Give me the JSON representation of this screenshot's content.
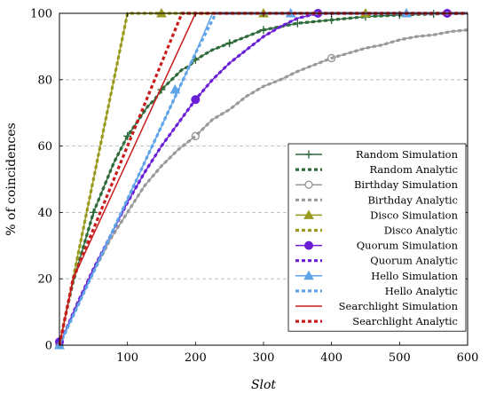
{
  "chart_data": {
    "type": "line",
    "xlabel": "Slot",
    "ylabel": "% of coincidences",
    "xlim": [
      0,
      600
    ],
    "ylim": [
      0,
      100
    ],
    "xticks": [
      100,
      200,
      300,
      400,
      500,
      600
    ],
    "yticks": [
      0,
      20,
      40,
      60,
      80,
      100
    ],
    "grid": "horizontal dashed",
    "legend_position": "bottom-right",
    "series": [
      {
        "name": "Random Simulation",
        "color": "#2f6b3a",
        "style": "solid",
        "marker": "plus",
        "x": [
          0,
          10,
          20,
          30,
          40,
          50,
          60,
          70,
          80,
          90,
          100,
          110,
          120,
          130,
          140,
          150,
          160,
          170,
          180,
          190,
          200,
          225,
          250,
          275,
          300,
          325,
          350,
          375,
          400,
          450,
          500,
          550,
          600
        ],
        "y": [
          0,
          10,
          19,
          26,
          33,
          40,
          45,
          50,
          55,
          59,
          63,
          66,
          69,
          72,
          74,
          77,
          79,
          81,
          83,
          84,
          86,
          89,
          91,
          93,
          95,
          96,
          97,
          97.5,
          98,
          99,
          99.5,
          99.8,
          100
        ],
        "markers_x": [
          0,
          50,
          100,
          150,
          200,
          250,
          300,
          350,
          400,
          450,
          500,
          550
        ],
        "markers_y": [
          0,
          40,
          63,
          77,
          86,
          91,
          95,
          97,
          98,
          99,
          99.5,
          99.8
        ]
      },
      {
        "name": "Random Analytic",
        "color": "#2f6b3a",
        "style": "dashed",
        "x": [
          0,
          10,
          20,
          30,
          40,
          50,
          60,
          70,
          80,
          90,
          100,
          110,
          120,
          130,
          140,
          150,
          160,
          170,
          180,
          190,
          200,
          225,
          250,
          275,
          300,
          325,
          350,
          375,
          400,
          450,
          500,
          550,
          600
        ],
        "y": [
          0,
          10,
          19,
          26,
          33,
          40,
          45,
          50,
          55,
          59,
          63,
          66,
          69,
          72,
          74,
          77,
          79,
          81,
          83,
          84,
          86,
          89,
          91,
          93,
          95,
          96,
          97,
          97.5,
          98,
          99,
          99.5,
          99.8,
          100
        ]
      },
      {
        "name": "Birthday Simulation",
        "color": "#999999",
        "style": "solid",
        "marker": "circle-open",
        "x": [
          0,
          25,
          50,
          75,
          100,
          125,
          150,
          175,
          200,
          225,
          250,
          275,
          300,
          325,
          350,
          375,
          400,
          425,
          450,
          475,
          500,
          525,
          550,
          575,
          600
        ],
        "y": [
          0,
          12,
          22,
          32,
          40,
          48,
          54,
          59,
          63,
          68,
          71,
          75,
          78,
          80,
          82.5,
          84.5,
          86.5,
          88,
          89.5,
          90.5,
          92,
          93,
          93.5,
          94.5,
          95
        ],
        "markers_x": [
          0,
          200,
          400
        ],
        "markers_y": [
          0,
          63,
          86.5
        ]
      },
      {
        "name": "Birthday Analytic",
        "color": "#999999",
        "style": "dashed",
        "x": [
          0,
          25,
          50,
          75,
          100,
          125,
          150,
          175,
          200,
          225,
          250,
          275,
          300,
          325,
          350,
          375,
          400,
          425,
          450,
          475,
          500,
          525,
          550,
          575,
          600
        ],
        "y": [
          0,
          12,
          22,
          32,
          40,
          48,
          54,
          59,
          63,
          68,
          71,
          75,
          78,
          80,
          82.5,
          84.5,
          86.5,
          88,
          89.5,
          90.5,
          92,
          93,
          93.5,
          94.5,
          95
        ]
      },
      {
        "name": "Disco Simulation",
        "color": "#9a9a1e",
        "style": "solid",
        "marker": "triangle",
        "x": [
          0,
          100,
          150,
          200,
          300,
          450,
          600
        ],
        "y": [
          0,
          100,
          100,
          100,
          100,
          100,
          100
        ],
        "markers_x": [
          0,
          150,
          300,
          450
        ],
        "markers_y": [
          0,
          100,
          100,
          100
        ]
      },
      {
        "name": "Disco Analytic",
        "color": "#9a9a1e",
        "style": "dashed",
        "x": [
          0,
          100,
          600
        ],
        "y": [
          0,
          100,
          100
        ]
      },
      {
        "name": "Quorum Simulation",
        "color": "#6a1fd6",
        "style": "solid",
        "marker": "circle-filled",
        "x": [
          0,
          25,
          50,
          75,
          100,
          125,
          150,
          175,
          200,
          225,
          250,
          275,
          300,
          325,
          350,
          380,
          600
        ],
        "y": [
          0,
          12,
          23,
          33,
          43,
          52,
          60,
          67,
          74,
          80,
          85,
          89,
          93,
          96,
          98.5,
          100,
          100
        ],
        "markers_x": [
          0,
          200,
          380,
          570
        ],
        "markers_y": [
          1,
          74,
          100,
          100
        ]
      },
      {
        "name": "Quorum Analytic",
        "color": "#6a1fd6",
        "style": "dashed",
        "x": [
          0,
          25,
          50,
          75,
          100,
          125,
          150,
          175,
          200,
          225,
          250,
          275,
          300,
          325,
          350,
          380,
          600
        ],
        "y": [
          0,
          12,
          23,
          33,
          43,
          52,
          60,
          67,
          74,
          80,
          85,
          89,
          93,
          96,
          98.5,
          100,
          100
        ]
      },
      {
        "name": "Hello Simulation",
        "color": "#5fa3e8",
        "style": "solid",
        "marker": "triangle",
        "x": [
          0,
          100,
          150,
          175,
          200,
          225,
          600
        ],
        "y": [
          0,
          44,
          66,
          77,
          88,
          100,
          100
        ],
        "markers_x": [
          0,
          170,
          340,
          510
        ],
        "markers_y": [
          0,
          77,
          100,
          100
        ]
      },
      {
        "name": "Hello Analytic",
        "color": "#5fa3e8",
        "style": "dashed",
        "x": [
          0,
          100,
          150,
          175,
          200,
          230,
          600
        ],
        "y": [
          0,
          44,
          66,
          77,
          88,
          100,
          100
        ]
      },
      {
        "name": "Searchlight Simulation",
        "color": "#c81d1d",
        "style": "solid",
        "x": [
          0,
          20,
          200,
          600
        ],
        "y": [
          0,
          20,
          100,
          100
        ]
      },
      {
        "name": "Searchlight Analytic",
        "color": "#c81d1d",
        "style": "dashed",
        "x": [
          0,
          20,
          180,
          600
        ],
        "y": [
          0,
          20,
          100,
          100
        ]
      }
    ]
  }
}
